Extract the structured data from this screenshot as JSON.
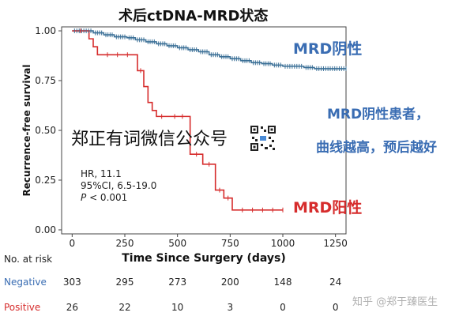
{
  "chart_data": {
    "type": "line",
    "title": "术后ctDNA-MRD状态",
    "xlabel": "Time Since Surgery (days)",
    "ylabel": "Recurrence-free survival",
    "xlim": [
      -50,
      1300
    ],
    "ylim": [
      -0.02,
      1.02
    ],
    "x_ticks": [
      0,
      250,
      500,
      750,
      1000,
      1250
    ],
    "y_ticks": [
      0.0,
      0.25,
      0.5,
      0.75,
      1.0
    ],
    "x_tick_labels": [
      "0",
      "250",
      "500",
      "750",
      "1000",
      "1250"
    ],
    "y_tick_labels": [
      "0.00",
      "0.25",
      "0.50",
      "0.75",
      "1.00"
    ],
    "grid": false,
    "series": [
      {
        "name": "MRD阴性",
        "color": "#3a6f96",
        "steps": [
          [
            0,
            1.0
          ],
          [
            100,
            0.99
          ],
          [
            150,
            0.98
          ],
          [
            200,
            0.97
          ],
          [
            260,
            0.965
          ],
          [
            300,
            0.955
          ],
          [
            350,
            0.945
          ],
          [
            400,
            0.935
          ],
          [
            450,
            0.925
          ],
          [
            500,
            0.915
          ],
          [
            550,
            0.905
          ],
          [
            600,
            0.895
          ],
          [
            650,
            0.88
          ],
          [
            700,
            0.87
          ],
          [
            750,
            0.86
          ],
          [
            800,
            0.85
          ],
          [
            850,
            0.84
          ],
          [
            900,
            0.835
          ],
          [
            950,
            0.828
          ],
          [
            1000,
            0.822
          ],
          [
            1100,
            0.816
          ],
          [
            1150,
            0.81
          ],
          [
            1300,
            0.81
          ]
        ]
      },
      {
        "name": "MRD阳性",
        "color": "#d62c2c",
        "steps": [
          [
            0,
            1.0
          ],
          [
            80,
            0.96
          ],
          [
            100,
            0.92
          ],
          [
            120,
            0.88
          ],
          [
            310,
            0.8
          ],
          [
            340,
            0.72
          ],
          [
            360,
            0.64
          ],
          [
            380,
            0.6
          ],
          [
            400,
            0.57
          ],
          [
            450,
            0.57
          ],
          [
            560,
            0.38
          ],
          [
            620,
            0.33
          ],
          [
            680,
            0.2
          ],
          [
            720,
            0.16
          ],
          [
            760,
            0.1
          ],
          [
            1000,
            0.1
          ]
        ]
      }
    ],
    "annotations": {
      "hr": "HR, 11.1",
      "ci": "95%CI, 6.5-19.0",
      "p_label": "P",
      "p_value": " < 0.001",
      "neg_label": "MRD阴性",
      "neg_note_line1": "MRD阴性患者，",
      "neg_note_line2": "曲线越高，预后越好",
      "pos_label": "MRD阳性"
    },
    "at_risk": {
      "header": "No. at risk",
      "rows": [
        {
          "label": "Negative",
          "color": "#3a6db3",
          "values": [
            "303",
            "295",
            "273",
            "200",
            "148",
            "24"
          ]
        },
        {
          "label": "Positive",
          "color": "#d62c2c",
          "values": [
            "26",
            "22",
            "10",
            "3",
            "0",
            "0"
          ]
        }
      ]
    }
  },
  "watermarks": {
    "center": "郑正有词微信公众号",
    "qr_icon": "qr-code-icon",
    "corner": "知乎 @郑于臻医生"
  }
}
